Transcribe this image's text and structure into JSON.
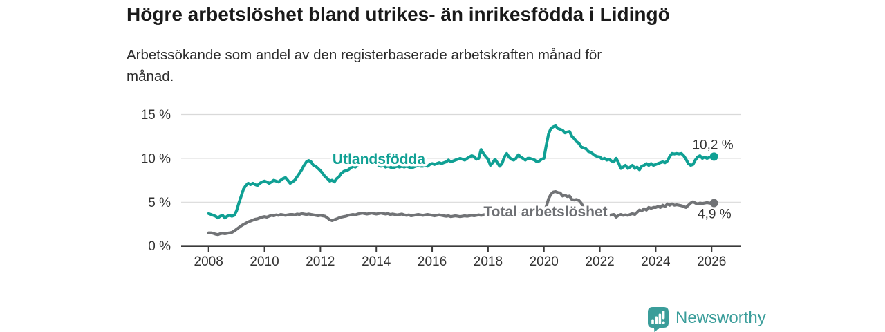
{
  "title": "Högre arbetslöshet bland utrikes- än inrikesfödda i Lidingö",
  "subtitle": "Arbetssökande som andel av den registerbaserade arbetskraften månad för månad.",
  "footer": {
    "brand": "Newsworthy",
    "logo_icon": "newsworthy-chart-bubble-icon",
    "brand_color": "#3a9d9a"
  },
  "colors": {
    "series_utlandsfodda": "#10a094",
    "series_total": "#717376",
    "series_total_label": "#6e7074",
    "grid": "#d9d9d9",
    "axis": "#3a3a3a",
    "axis_text": "#333333",
    "end_label_text": "#333333",
    "background": "#ffffff"
  },
  "chart_data": {
    "type": "line",
    "title": "Högre arbetslöshet bland utrikes- än inrikesfödda i Lidingö",
    "subtitle": "Arbetssökande som andel av den registerbaserade arbetskraften månad för månad.",
    "xlabel": "",
    "ylabel": "",
    "unit": "%",
    "grid": "horizontal",
    "legend_position": "inline-labels",
    "x_start_year": 2008,
    "x_step_months": 1,
    "xlim": [
      2007.05,
      2027.05
    ],
    "ylim": [
      0,
      15.5
    ],
    "y_ticks": [
      {
        "value": 0,
        "label": "0 %"
      },
      {
        "value": 5,
        "label": "5 %"
      },
      {
        "value": 10,
        "label": "10 %"
      },
      {
        "value": 15,
        "label": "15 %"
      }
    ],
    "x_ticks": [
      {
        "value": 2008,
        "label": "2008"
      },
      {
        "value": 2010,
        "label": "2010"
      },
      {
        "value": 2012,
        "label": "2012"
      },
      {
        "value": 2014,
        "label": "2014"
      },
      {
        "value": 2016,
        "label": "2016"
      },
      {
        "value": 2018,
        "label": "2018"
      },
      {
        "value": 2020,
        "label": "2020"
      },
      {
        "value": 2022,
        "label": "2022"
      },
      {
        "value": 2024,
        "label": "2024"
      },
      {
        "value": 2026,
        "label": "2026"
      }
    ],
    "series": [
      {
        "name": "Utlandsfödda",
        "color": "#10a094",
        "label_color": "#10a094",
        "end_label": "10,2 %",
        "end_value": 10.2,
        "values": [
          3.7,
          3.6,
          3.5,
          3.4,
          3.2,
          3.4,
          3.5,
          3.2,
          3.4,
          3.5,
          3.4,
          3.5,
          4.0,
          4.9,
          5.7,
          6.5,
          6.9,
          7.15,
          7.0,
          7.15,
          7.0,
          6.9,
          7.15,
          7.3,
          7.4,
          7.3,
          7.15,
          7.3,
          7.5,
          7.4,
          7.3,
          7.5,
          7.7,
          7.8,
          7.5,
          7.15,
          7.3,
          7.5,
          7.9,
          8.3,
          8.7,
          9.2,
          9.6,
          9.75,
          9.6,
          9.2,
          9.1,
          8.85,
          8.6,
          8.3,
          7.9,
          7.7,
          7.4,
          7.5,
          7.3,
          7.7,
          7.9,
          8.3,
          8.5,
          8.6,
          8.7,
          8.9,
          9.1,
          9.0,
          9.2,
          9.4,
          9.5,
          9.4,
          9.3,
          9.4,
          9.5,
          9.4,
          9.3,
          9.2,
          9.1,
          9.2,
          9.0,
          9.1,
          9.0,
          8.9,
          9.0,
          9.1,
          9.0,
          9.1,
          9.0,
          9.1,
          9.0,
          8.9,
          9.0,
          9.1,
          9.2,
          9.1,
          9.1,
          9.2,
          9.1,
          9.3,
          9.4,
          9.3,
          9.4,
          9.5,
          9.4,
          9.5,
          9.6,
          9.8,
          9.6,
          9.7,
          9.8,
          9.9,
          10.0,
          9.9,
          9.8,
          10.0,
          10.15,
          10.3,
          10.2,
          9.9,
          10.0,
          11.0,
          10.55,
          10.2,
          9.9,
          9.2,
          9.5,
          9.9,
          9.5,
          9.1,
          9.4,
          10.15,
          10.55,
          10.15,
          9.9,
          9.8,
          10.0,
          10.4,
          10.15,
          10.0,
          9.8,
          10.0,
          10.0,
          9.9,
          9.8,
          9.6,
          9.7,
          9.9,
          10.0,
          11.5,
          12.8,
          13.4,
          13.6,
          13.7,
          13.4,
          13.3,
          13.2,
          12.9,
          13.0,
          13.05,
          12.5,
          12.25,
          11.9,
          11.7,
          11.3,
          11.2,
          11.1,
          10.8,
          10.7,
          10.5,
          10.3,
          10.2,
          10.15,
          9.9,
          10.0,
          9.8,
          9.9,
          9.7,
          9.6,
          10.0,
          9.5,
          8.85,
          9.0,
          9.2,
          8.85,
          9.0,
          9.2,
          8.85,
          9.0,
          8.7,
          9.1,
          9.2,
          9.4,
          9.2,
          9.4,
          9.2,
          9.3,
          9.4,
          9.5,
          9.6,
          9.5,
          9.7,
          10.2,
          10.55,
          10.5,
          10.55,
          10.5,
          10.55,
          10.3,
          9.9,
          9.4,
          9.2,
          9.3,
          9.8,
          10.15,
          10.3,
          10.0,
          10.15,
          10.0,
          10.1,
          10.15,
          10.2
        ]
      },
      {
        "name": "Total arbetslöshet",
        "color": "#717376",
        "label_color": "#6e7074",
        "end_label": "4,9 %",
        "end_value": 4.9,
        "values": [
          1.5,
          1.5,
          1.45,
          1.35,
          1.3,
          1.4,
          1.45,
          1.4,
          1.45,
          1.5,
          1.55,
          1.7,
          1.9,
          2.1,
          2.3,
          2.45,
          2.6,
          2.75,
          2.85,
          2.95,
          3.05,
          3.1,
          3.2,
          3.3,
          3.35,
          3.3,
          3.4,
          3.5,
          3.45,
          3.55,
          3.5,
          3.6,
          3.55,
          3.5,
          3.55,
          3.6,
          3.6,
          3.55,
          3.65,
          3.6,
          3.7,
          3.65,
          3.6,
          3.65,
          3.6,
          3.55,
          3.5,
          3.45,
          3.5,
          3.45,
          3.4,
          3.2,
          3.0,
          2.9,
          3.0,
          3.1,
          3.2,
          3.3,
          3.35,
          3.4,
          3.5,
          3.55,
          3.6,
          3.55,
          3.65,
          3.7,
          3.75,
          3.7,
          3.65,
          3.7,
          3.75,
          3.7,
          3.65,
          3.7,
          3.75,
          3.7,
          3.65,
          3.7,
          3.6,
          3.65,
          3.6,
          3.55,
          3.6,
          3.65,
          3.55,
          3.5,
          3.55,
          3.45,
          3.5,
          3.55,
          3.6,
          3.55,
          3.5,
          3.55,
          3.6,
          3.55,
          3.5,
          3.45,
          3.5,
          3.55,
          3.5,
          3.45,
          3.4,
          3.45,
          3.35,
          3.4,
          3.45,
          3.4,
          3.35,
          3.4,
          3.45,
          3.4,
          3.45,
          3.5,
          3.45,
          3.5,
          3.55,
          3.5,
          3.55,
          3.6,
          3.55,
          3.6,
          3.65,
          3.6,
          3.65,
          3.7,
          3.65,
          3.6,
          3.65,
          3.7,
          3.65,
          3.7,
          3.65,
          3.7,
          3.65,
          3.7,
          3.75,
          3.7,
          3.65,
          3.7,
          3.65,
          3.6,
          3.65,
          3.7,
          3.8,
          4.5,
          5.4,
          5.9,
          6.15,
          6.2,
          6.1,
          6.05,
          5.7,
          5.8,
          5.65,
          5.7,
          5.3,
          5.25,
          5.3,
          5.2,
          4.9,
          4.4,
          4.3,
          4.2,
          4.1,
          4.0,
          3.9,
          3.8,
          3.7,
          3.6,
          3.55,
          3.5,
          3.5,
          3.55,
          3.6,
          3.3,
          3.5,
          3.6,
          3.5,
          3.55,
          3.5,
          3.6,
          3.7,
          3.6,
          3.85,
          4.1,
          4.0,
          4.25,
          4.1,
          4.4,
          4.3,
          4.4,
          4.4,
          4.5,
          4.4,
          4.65,
          4.5,
          4.8,
          4.65,
          4.8,
          4.65,
          4.7,
          4.65,
          4.6,
          4.5,
          4.4,
          4.65,
          4.9,
          5.05,
          4.9,
          4.8,
          4.9,
          4.85,
          4.9,
          4.95,
          4.9,
          4.9,
          4.9
        ]
      }
    ]
  }
}
